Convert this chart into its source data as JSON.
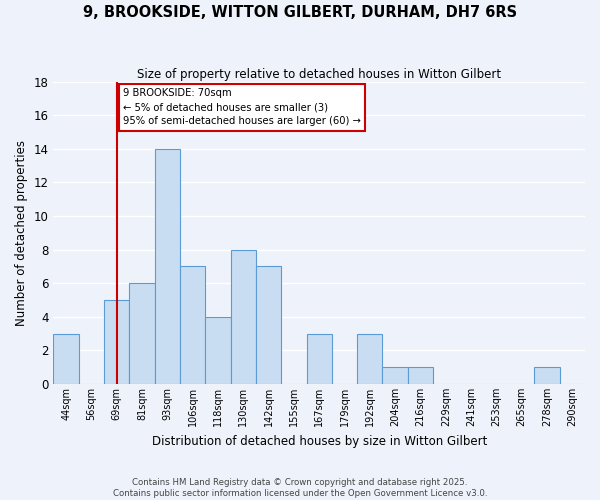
{
  "title": "9, BROOKSIDE, WITTON GILBERT, DURHAM, DH7 6RS",
  "subtitle": "Size of property relative to detached houses in Witton Gilbert",
  "xlabel": "Distribution of detached houses by size in Witton Gilbert",
  "ylabel": "Number of detached properties",
  "bins": [
    "44sqm",
    "56sqm",
    "69sqm",
    "81sqm",
    "93sqm",
    "106sqm",
    "118sqm",
    "130sqm",
    "142sqm",
    "155sqm",
    "167sqm",
    "179sqm",
    "192sqm",
    "204sqm",
    "216sqm",
    "229sqm",
    "241sqm",
    "253sqm",
    "265sqm",
    "278sqm",
    "290sqm"
  ],
  "counts": [
    3,
    0,
    5,
    6,
    14,
    7,
    4,
    8,
    7,
    0,
    3,
    0,
    3,
    1,
    1,
    0,
    0,
    0,
    0,
    1,
    0
  ],
  "bar_color": "#c9ddf2",
  "bar_edge_color": "#5b9bd5",
  "background_color": "#eef3fb",
  "grid_color": "#ffffff",
  "vline_x_index": 2,
  "vline_color": "#cc0000",
  "annotation_title": "9 BROOKSIDE: 70sqm",
  "annotation_line1": "← 5% of detached houses are smaller (3)",
  "annotation_line2": "95% of semi-detached houses are larger (60) →",
  "annotation_box_color": "#ffffff",
  "annotation_box_edge": "#cc0000",
  "footer_line1": "Contains HM Land Registry data © Crown copyright and database right 2025.",
  "footer_line2": "Contains public sector information licensed under the Open Government Licence v3.0.",
  "ylim": [
    0,
    18
  ],
  "yticks": [
    0,
    2,
    4,
    6,
    8,
    10,
    12,
    14,
    16,
    18
  ]
}
